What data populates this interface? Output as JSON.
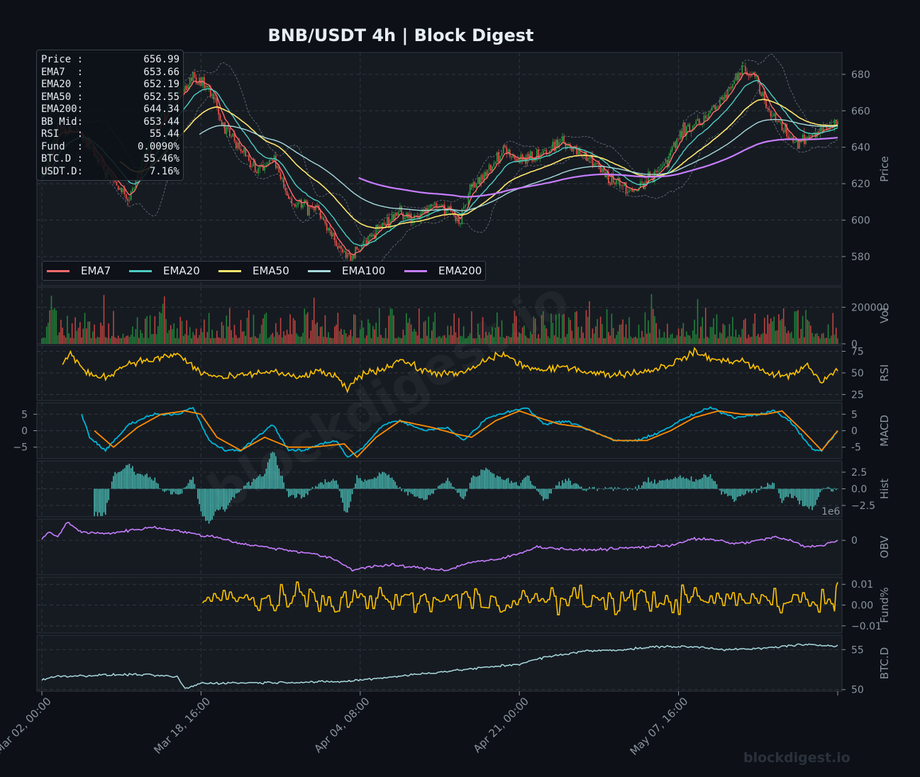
{
  "title": "BNB/USDT  4h  |  Block Digest",
  "watermark": "blockdigest.io",
  "center_watermark": "blockdigest.io",
  "colors": {
    "background": "#0d1117",
    "panel": "#161b22",
    "grid": "#30363d",
    "up": "#26a641",
    "down": "#f85149",
    "ema7": "#ff6b6b",
    "ema20": "#4ecdc4",
    "ema50": "#ffe66d",
    "ema100": "#a8dadc",
    "ema200": "#c77dff",
    "rsi": "#ffc300",
    "macd": "#00b4d8",
    "signal": "#ff8c00",
    "hist": "#4ecdc4",
    "obv": "#c77dff",
    "funding": "#ffc300",
    "btcd": "#a8dadc"
  },
  "info_box": [
    {
      "label": "Price :",
      "value": "656.99"
    },
    {
      "label": "EMA7  :",
      "value": "653.66"
    },
    {
      "label": "EMA20 :",
      "value": "652.19"
    },
    {
      "label": "EMA50 :",
      "value": "652.55"
    },
    {
      "label": "EMA200:",
      "value": "644.34"
    },
    {
      "label": "BB Mid:",
      "value": "653.44"
    },
    {
      "label": "RSI   :",
      "value": "55.44"
    },
    {
      "label": "Fund  :",
      "value": "0.0090%"
    },
    {
      "label": "BTC.D :",
      "value": "55.46%"
    },
    {
      "label": "USDT.D:",
      "value": "7.16%"
    }
  ],
  "legend": [
    {
      "name": "EMA7",
      "color_key": "ema7"
    },
    {
      "name": "EMA20",
      "color_key": "ema20"
    },
    {
      "name": "EMA50",
      "color_key": "ema50"
    },
    {
      "name": "EMA100",
      "color_key": "ema100"
    },
    {
      "name": "EMA200",
      "color_key": "ema200"
    }
  ],
  "chart_data": [
    {
      "type": "candlestick",
      "panel": "price",
      "ylabel": "Price",
      "ylim": [
        564,
        692
      ],
      "yticks": [
        580,
        600,
        620,
        640,
        660,
        680
      ],
      "x_ticks": [
        "Mar 02, 00:00",
        "Mar 18, 16:00",
        "Apr 04, 08:00",
        "Apr 21, 00:00",
        "May 07, 16:00"
      ],
      "x_tick_index": [
        0,
        100,
        200,
        300,
        400
      ],
      "n_bars": 501,
      "close_anchors": [
        [
          0,
          622
        ],
        [
          10,
          652
        ],
        [
          25,
          646
        ],
        [
          40,
          628
        ],
        [
          55,
          610
        ],
        [
          70,
          650
        ],
        [
          80,
          662
        ],
        [
          95,
          680
        ],
        [
          105,
          672
        ],
        [
          115,
          650
        ],
        [
          125,
          640
        ],
        [
          135,
          626
        ],
        [
          145,
          634
        ],
        [
          155,
          610
        ],
        [
          165,
          608
        ],
        [
          175,
          604
        ],
        [
          185,
          588
        ],
        [
          192,
          580
        ],
        [
          200,
          586
        ],
        [
          210,
          594
        ],
        [
          222,
          604
        ],
        [
          232,
          600
        ],
        [
          245,
          608
        ],
        [
          255,
          606
        ],
        [
          262,
          600
        ],
        [
          270,
          618
        ],
        [
          280,
          626
        ],
        [
          290,
          640
        ],
        [
          300,
          632
        ],
        [
          310,
          636
        ],
        [
          320,
          640
        ],
        [
          330,
          642
        ],
        [
          340,
          636
        ],
        [
          350,
          628
        ],
        [
          360,
          620
        ],
        [
          372,
          616
        ],
        [
          382,
          624
        ],
        [
          392,
          632
        ],
        [
          402,
          648
        ],
        [
          412,
          654
        ],
        [
          422,
          660
        ],
        [
          432,
          672
        ],
        [
          440,
          684
        ],
        [
          447,
          680
        ],
        [
          455,
          662
        ],
        [
          465,
          650
        ],
        [
          475,
          642
        ],
        [
          485,
          648
        ],
        [
          495,
          650
        ],
        [
          500,
          657
        ]
      ],
      "ema7_last": 653.66,
      "ema20_last": 652.19,
      "ema50_last": 652.55,
      "ema200_last": 644.34,
      "ema200_start_index": 199,
      "ema100_start_index": 99,
      "ema50_start_index": 49,
      "bb_mid_last": 653.44
    },
    {
      "type": "bar",
      "panel": "volume",
      "ylabel": "Vol",
      "ylim": [
        0,
        310000
      ],
      "yticks": [
        0,
        200000
      ]
    },
    {
      "type": "line",
      "panel": "rsi",
      "ylabel": "RSI",
      "ylim": [
        18,
        82
      ],
      "yticks": [
        25,
        50,
        75
      ],
      "anchors": [
        [
          13,
          60
        ],
        [
          18,
          73
        ],
        [
          28,
          49
        ],
        [
          40,
          45
        ],
        [
          55,
          62
        ],
        [
          70,
          65
        ],
        [
          85,
          72
        ],
        [
          100,
          50
        ],
        [
          115,
          44
        ],
        [
          130,
          48
        ],
        [
          145,
          52
        ],
        [
          160,
          44
        ],
        [
          175,
          52
        ],
        [
          185,
          45
        ],
        [
          192,
          30
        ],
        [
          200,
          48
        ],
        [
          215,
          55
        ],
        [
          225,
          66
        ],
        [
          240,
          52
        ],
        [
          260,
          48
        ],
        [
          270,
          54
        ],
        [
          280,
          66
        ],
        [
          290,
          72
        ],
        [
          300,
          60
        ],
        [
          315,
          52
        ],
        [
          330,
          58
        ],
        [
          345,
          50
        ],
        [
          360,
          48
        ],
        [
          380,
          52
        ],
        [
          395,
          60
        ],
        [
          410,
          74
        ],
        [
          425,
          64
        ],
        [
          440,
          64
        ],
        [
          455,
          50
        ],
        [
          470,
          46
        ],
        [
          480,
          60
        ],
        [
          490,
          38
        ],
        [
          500,
          55
        ]
      ]
    },
    {
      "type": "line",
      "panel": "macd",
      "ylabel": "MACD",
      "ylim": [
        -8.5,
        8.5
      ],
      "yticks": [
        -5,
        0,
        5
      ],
      "series": [
        {
          "name": "MACD",
          "anchors": [
            [
              25,
              5
            ],
            [
              30,
              -2
            ],
            [
              40,
              -6
            ],
            [
              55,
              2
            ],
            [
              70,
              5
            ],
            [
              85,
              5
            ],
            [
              95,
              7
            ],
            [
              105,
              -3
            ],
            [
              115,
              -6
            ],
            [
              125,
              -6
            ],
            [
              135,
              -2
            ],
            [
              145,
              2
            ],
            [
              155,
              -6
            ],
            [
              165,
              -6
            ],
            [
              175,
              -4
            ],
            [
              185,
              -3
            ],
            [
              192,
              -8
            ],
            [
              200,
              -6
            ],
            [
              215,
              2
            ],
            [
              225,
              3
            ],
            [
              240,
              0
            ],
            [
              255,
              1
            ],
            [
              265,
              -3
            ],
            [
              280,
              4
            ],
            [
              295,
              6
            ],
            [
              305,
              7
            ],
            [
              315,
              2
            ],
            [
              330,
              3
            ],
            [
              345,
              0
            ],
            [
              360,
              -3
            ],
            [
              375,
              -3
            ],
            [
              390,
              0
            ],
            [
              405,
              4
            ],
            [
              420,
              7
            ],
            [
              435,
              4
            ],
            [
              450,
              5
            ],
            [
              460,
              6
            ],
            [
              470,
              3
            ],
            [
              478,
              -2
            ],
            [
              485,
              -6
            ],
            [
              490,
              -6
            ],
            [
              500,
              0
            ]
          ]
        },
        {
          "name": "Signal",
          "anchors": [
            [
              33,
              0
            ],
            [
              45,
              -5
            ],
            [
              60,
              1
            ],
            [
              75,
              5
            ],
            [
              90,
              6
            ],
            [
              100,
              5
            ],
            [
              110,
              -2
            ],
            [
              125,
              -6
            ],
            [
              140,
              -2
            ],
            [
              155,
              -5
            ],
            [
              170,
              -5
            ],
            [
              190,
              -4
            ],
            [
              198,
              -8
            ],
            [
              210,
              -2
            ],
            [
              225,
              3
            ],
            [
              245,
              1
            ],
            [
              260,
              -1
            ],
            [
              270,
              -2
            ],
            [
              285,
              3
            ],
            [
              300,
              6
            ],
            [
              312,
              4
            ],
            [
              325,
              2
            ],
            [
              340,
              1
            ],
            [
              360,
              -3
            ],
            [
              380,
              -3
            ],
            [
              395,
              0
            ],
            [
              410,
              4
            ],
            [
              425,
              6
            ],
            [
              440,
              5
            ],
            [
              455,
              5
            ],
            [
              465,
              6
            ],
            [
              478,
              0
            ],
            [
              490,
              -6
            ],
            [
              500,
              0
            ]
          ]
        }
      ]
    },
    {
      "type": "bar",
      "panel": "histogram",
      "ylabel": "Hist",
      "ylim": [
        -4.2,
        4.2
      ],
      "yticks": [
        -2.5,
        0.0,
        2.5
      ]
    },
    {
      "type": "line",
      "panel": "obv",
      "ylabel": "OBV",
      "y_offset_label": "1e6",
      "ylim": [
        -2.1,
        1.3
      ],
      "yticks": [
        0
      ],
      "anchors": [
        [
          0,
          0.1
        ],
        [
          5,
          0.5
        ],
        [
          10,
          0.2
        ],
        [
          16,
          1.1
        ],
        [
          25,
          0.5
        ],
        [
          40,
          0.4
        ],
        [
          55,
          0.6
        ],
        [
          70,
          0.8
        ],
        [
          85,
          0.6
        ],
        [
          100,
          0.3
        ],
        [
          110,
          0.2
        ],
        [
          125,
          -0.2
        ],
        [
          140,
          -0.4
        ],
        [
          155,
          -0.6
        ],
        [
          170,
          -0.8
        ],
        [
          185,
          -1.2
        ],
        [
          195,
          -1.8
        ],
        [
          205,
          -1.6
        ],
        [
          220,
          -1.5
        ],
        [
          240,
          -1.7
        ],
        [
          255,
          -1.8
        ],
        [
          270,
          -1.3
        ],
        [
          285,
          -1.2
        ],
        [
          300,
          -0.8
        ],
        [
          310,
          -0.4
        ],
        [
          325,
          -0.5
        ],
        [
          340,
          -0.6
        ],
        [
          360,
          -0.5
        ],
        [
          380,
          -0.4
        ],
        [
          395,
          -0.3
        ],
        [
          410,
          0.1
        ],
        [
          425,
          0.0
        ],
        [
          435,
          -0.2
        ],
        [
          445,
          -0.1
        ],
        [
          460,
          0.2
        ],
        [
          470,
          0.0
        ],
        [
          480,
          -0.4
        ],
        [
          490,
          -0.3
        ],
        [
          500,
          0.0
        ]
      ]
    },
    {
      "type": "line",
      "panel": "funding",
      "ylabel": "Fund%",
      "ylim": [
        -0.0135,
        0.0135
      ],
      "yticks": [
        -0.01,
        0.0,
        0.01
      ],
      "start_index": 101
    },
    {
      "type": "line",
      "panel": "btc_dominance",
      "ylabel": "BTC.D",
      "ylim": [
        49.8,
        56.8
      ],
      "yticks": [
        50,
        55
      ],
      "anchors": [
        [
          0,
          51.2
        ],
        [
          10,
          51.7
        ],
        [
          20,
          51.7
        ],
        [
          35,
          51.8
        ],
        [
          60,
          51.9
        ],
        [
          85,
          51.6
        ],
        [
          90,
          50.1
        ],
        [
          100,
          50.8
        ],
        [
          150,
          50.9
        ],
        [
          190,
          51.0
        ],
        [
          220,
          51.6
        ],
        [
          260,
          52.4
        ],
        [
          280,
          52.8
        ],
        [
          300,
          53.2
        ],
        [
          315,
          54.0
        ],
        [
          340,
          54.8
        ],
        [
          365,
          55.0
        ],
        [
          390,
          55.4
        ],
        [
          415,
          55.3
        ],
        [
          430,
          55.0
        ],
        [
          450,
          55.1
        ],
        [
          475,
          55.6
        ],
        [
          500,
          55.5
        ]
      ]
    }
  ]
}
